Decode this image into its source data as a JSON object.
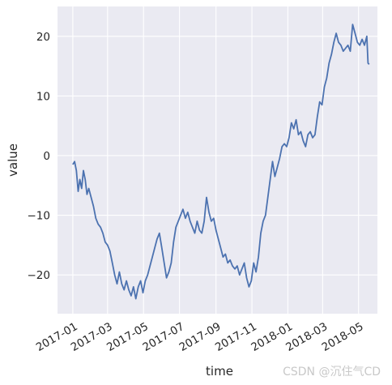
{
  "chart_data": {
    "type": "line",
    "xlabel": "time",
    "ylabel": "value",
    "grid": true,
    "ylim": [
      -26.5,
      25
    ],
    "xlim": [
      "2016-12-06",
      "2018-06-02"
    ],
    "y_ticks": [
      -20,
      -10,
      0,
      10,
      20
    ],
    "x_ticks": [
      {
        "label": "2017-01",
        "date": "2017-01-01"
      },
      {
        "label": "2017-03",
        "date": "2017-03-01"
      },
      {
        "label": "2017-05",
        "date": "2017-05-01"
      },
      {
        "label": "2017-07",
        "date": "2017-07-01"
      },
      {
        "label": "2017-09",
        "date": "2017-09-01"
      },
      {
        "label": "2017-11",
        "date": "2017-11-01"
      },
      {
        "label": "2018-01",
        "date": "2018-01-01"
      },
      {
        "label": "2018-03",
        "date": "2018-03-01"
      },
      {
        "label": "2018-05",
        "date": "2018-05-01"
      }
    ],
    "series": [
      {
        "color": "#4c72b0",
        "points": [
          [
            "2017-01-01",
            -1.5
          ],
          [
            "2017-01-04",
            -1.0
          ],
          [
            "2017-01-07",
            -2.5
          ],
          [
            "2017-01-10",
            -6.0
          ],
          [
            "2017-01-13",
            -4.0
          ],
          [
            "2017-01-16",
            -5.5
          ],
          [
            "2017-01-19",
            -2.5
          ],
          [
            "2017-01-22",
            -4.0
          ],
          [
            "2017-01-25",
            -6.5
          ],
          [
            "2017-01-28",
            -5.5
          ],
          [
            "2017-02-01",
            -7.0
          ],
          [
            "2017-02-05",
            -8.5
          ],
          [
            "2017-02-09",
            -10.5
          ],
          [
            "2017-02-13",
            -11.5
          ],
          [
            "2017-02-17",
            -12.0
          ],
          [
            "2017-02-21",
            -13.0
          ],
          [
            "2017-02-25",
            -14.5
          ],
          [
            "2017-03-01",
            -15.0
          ],
          [
            "2017-03-05",
            -16.0
          ],
          [
            "2017-03-09",
            -18.0
          ],
          [
            "2017-03-13",
            -20.0
          ],
          [
            "2017-03-17",
            -21.5
          ],
          [
            "2017-03-21",
            -19.5
          ],
          [
            "2017-03-25",
            -21.5
          ],
          [
            "2017-03-29",
            -22.5
          ],
          [
            "2017-04-02",
            -21.0
          ],
          [
            "2017-04-06",
            -22.5
          ],
          [
            "2017-04-10",
            -23.5
          ],
          [
            "2017-04-14",
            -22.0
          ],
          [
            "2017-04-18",
            -24.0
          ],
          [
            "2017-04-22",
            -22.0
          ],
          [
            "2017-04-26",
            -21.0
          ],
          [
            "2017-04-30",
            -23.0
          ],
          [
            "2017-05-04",
            -21.0
          ],
          [
            "2017-05-08",
            -20.0
          ],
          [
            "2017-05-12",
            -18.5
          ],
          [
            "2017-05-16",
            -17.0
          ],
          [
            "2017-05-20",
            -15.5
          ],
          [
            "2017-05-24",
            -14.0
          ],
          [
            "2017-05-28",
            -13.0
          ],
          [
            "2017-06-01",
            -15.5
          ],
          [
            "2017-06-05",
            -18.0
          ],
          [
            "2017-06-09",
            -20.5
          ],
          [
            "2017-06-13",
            -19.5
          ],
          [
            "2017-06-17",
            -18.0
          ],
          [
            "2017-06-21",
            -14.5
          ],
          [
            "2017-06-25",
            -12.0
          ],
          [
            "2017-06-29",
            -11.0
          ],
          [
            "2017-07-03",
            -10.0
          ],
          [
            "2017-07-07",
            -9.0
          ],
          [
            "2017-07-11",
            -10.5
          ],
          [
            "2017-07-15",
            -9.5
          ],
          [
            "2017-07-19",
            -11.0
          ],
          [
            "2017-07-23",
            -12.0
          ],
          [
            "2017-07-27",
            -13.0
          ],
          [
            "2017-07-31",
            -11.0
          ],
          [
            "2017-08-04",
            -12.5
          ],
          [
            "2017-08-08",
            -13.0
          ],
          [
            "2017-08-12",
            -11.0
          ],
          [
            "2017-08-16",
            -7.0
          ],
          [
            "2017-08-20",
            -9.5
          ],
          [
            "2017-08-24",
            -11.0
          ],
          [
            "2017-08-28",
            -10.5
          ],
          [
            "2017-09-01",
            -12.5
          ],
          [
            "2017-09-05",
            -14.0
          ],
          [
            "2017-09-09",
            -15.5
          ],
          [
            "2017-09-13",
            -17.0
          ],
          [
            "2017-09-17",
            -16.5
          ],
          [
            "2017-09-21",
            -18.0
          ],
          [
            "2017-09-25",
            -17.5
          ],
          [
            "2017-09-29",
            -18.5
          ],
          [
            "2017-10-03",
            -19.0
          ],
          [
            "2017-10-07",
            -18.5
          ],
          [
            "2017-10-11",
            -20.0
          ],
          [
            "2017-10-15",
            -19.0
          ],
          [
            "2017-10-19",
            -18.0
          ],
          [
            "2017-10-23",
            -20.5
          ],
          [
            "2017-10-27",
            -22.0
          ],
          [
            "2017-10-31",
            -21.0
          ],
          [
            "2017-11-04",
            -18.0
          ],
          [
            "2017-11-08",
            -19.5
          ],
          [
            "2017-11-12",
            -17.0
          ],
          [
            "2017-11-16",
            -13.0
          ],
          [
            "2017-11-20",
            -11.0
          ],
          [
            "2017-11-24",
            -10.0
          ],
          [
            "2017-11-28",
            -7.0
          ],
          [
            "2017-12-02",
            -4.0
          ],
          [
            "2017-12-06",
            -1.0
          ],
          [
            "2017-12-10",
            -3.5
          ],
          [
            "2017-12-14",
            -2.0
          ],
          [
            "2017-12-18",
            -0.5
          ],
          [
            "2017-12-22",
            1.5
          ],
          [
            "2017-12-26",
            2.0
          ],
          [
            "2017-12-30",
            1.5
          ],
          [
            "2018-01-03",
            3.0
          ],
          [
            "2018-01-07",
            5.5
          ],
          [
            "2018-01-11",
            4.5
          ],
          [
            "2018-01-15",
            6.0
          ],
          [
            "2018-01-19",
            3.5
          ],
          [
            "2018-01-23",
            4.0
          ],
          [
            "2018-01-27",
            2.5
          ],
          [
            "2018-01-31",
            1.5
          ],
          [
            "2018-02-04",
            3.5
          ],
          [
            "2018-02-08",
            4.0
          ],
          [
            "2018-02-12",
            3.0
          ],
          [
            "2018-02-16",
            3.5
          ],
          [
            "2018-02-20",
            6.5
          ],
          [
            "2018-02-24",
            9.0
          ],
          [
            "2018-02-28",
            8.5
          ],
          [
            "2018-03-04",
            11.5
          ],
          [
            "2018-03-08",
            13.0
          ],
          [
            "2018-03-12",
            15.5
          ],
          [
            "2018-03-16",
            17.0
          ],
          [
            "2018-03-20",
            19.0
          ],
          [
            "2018-03-24",
            20.5
          ],
          [
            "2018-03-28",
            19.0
          ],
          [
            "2018-04-01",
            18.5
          ],
          [
            "2018-04-05",
            17.5
          ],
          [
            "2018-04-09",
            18.0
          ],
          [
            "2018-04-13",
            18.5
          ],
          [
            "2018-04-17",
            17.5
          ],
          [
            "2018-04-21",
            22.0
          ],
          [
            "2018-04-25",
            20.5
          ],
          [
            "2018-04-29",
            19.0
          ],
          [
            "2018-05-03",
            18.5
          ],
          [
            "2018-05-07",
            19.5
          ],
          [
            "2018-05-11",
            18.5
          ],
          [
            "2018-05-15",
            20.0
          ],
          [
            "2018-05-17",
            15.5
          ],
          [
            "2018-05-19",
            15.3
          ]
        ]
      }
    ]
  },
  "watermark": "CSDN @沉住气CD",
  "colors": {
    "plot_background": "#eaeaf2",
    "grid": "#ffffff",
    "line": "#4c72b0",
    "text": "#262626"
  }
}
